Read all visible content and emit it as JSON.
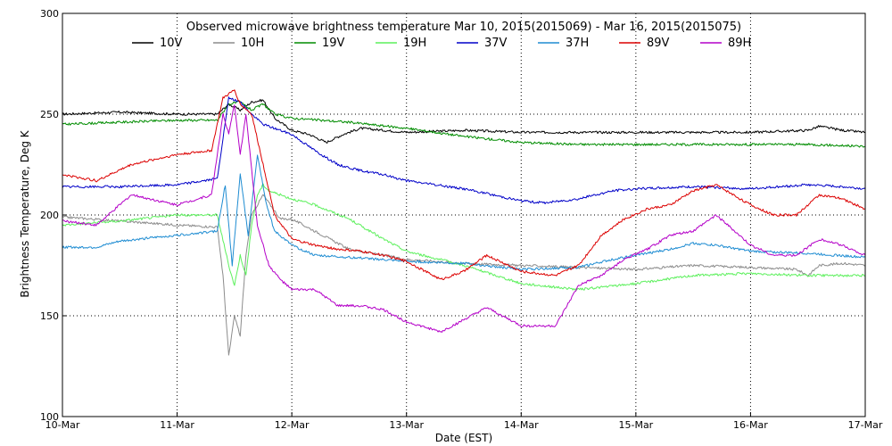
{
  "chart_data": {
    "type": "line",
    "title": "Observed microwave brightness temperature Mar 10, 2015(2015069) - Mar 16, 2015(2015075)",
    "xlabel": "Date (EST)",
    "ylabel": "Brightness Temperature, Deg K",
    "x_ticks": [
      "10-Mar",
      "11-Mar",
      "12-Mar",
      "13-Mar",
      "14-Mar",
      "15-Mar",
      "16-Mar",
      "17-Mar"
    ],
    "y_ticks": [
      "100",
      "150",
      "200",
      "250",
      "300"
    ],
    "xlim": [
      0,
      7
    ],
    "ylim": [
      100,
      300
    ],
    "grid": true,
    "legend_position": "top",
    "series": [
      {
        "name": "10V",
        "color": "#000000",
        "x": [
          0,
          0.5,
          1.0,
          1.35,
          1.45,
          1.55,
          1.65,
          1.75,
          1.85,
          2.0,
          2.15,
          2.3,
          2.45,
          2.6,
          2.8,
          3.0,
          3.5,
          4.0,
          4.5,
          5.0,
          5.5,
          6.0,
          6.5,
          6.6,
          6.8,
          7.0
        ],
        "y": [
          250,
          251,
          250,
          250,
          255,
          252,
          256,
          257,
          248,
          242,
          240,
          236,
          240,
          243,
          242,
          241,
          242,
          241,
          241,
          241,
          241,
          241,
          242,
          244,
          242,
          241
        ]
      },
      {
        "name": "10H",
        "color": "#8c8c8c",
        "x": [
          0,
          0.5,
          1.0,
          1.35,
          1.4,
          1.45,
          1.5,
          1.55,
          1.6,
          1.65,
          1.7,
          1.75,
          1.8,
          1.9,
          2.0,
          2.2,
          2.5,
          2.8,
          3.0,
          3.5,
          4.0,
          4.5,
          5.0,
          5.5,
          6.0,
          6.4,
          6.5,
          6.6,
          6.8,
          7.0
        ],
        "y": [
          199,
          197,
          195,
          194,
          170,
          130,
          150,
          140,
          180,
          200,
          205,
          210,
          206,
          198,
          198,
          192,
          183,
          180,
          178,
          176,
          175,
          174,
          173,
          175,
          174,
          173,
          170,
          175,
          176,
          175
        ]
      },
      {
        "name": "19V",
        "color": "#008c00",
        "x": [
          0,
          0.5,
          1.0,
          1.35,
          1.45,
          1.55,
          1.65,
          1.75,
          1.85,
          2.0,
          2.5,
          3.0,
          3.5,
          4.0,
          4.5,
          5.0,
          5.5,
          6.0,
          6.5,
          7.0
        ],
        "y": [
          245,
          246,
          247,
          247,
          255,
          256,
          252,
          255,
          250,
          248,
          246,
          243,
          239,
          236,
          235,
          235,
          235,
          235,
          235,
          234
        ]
      },
      {
        "name": "19H",
        "color": "#5cf05c",
        "x": [
          0,
          0.5,
          1.0,
          1.35,
          1.45,
          1.5,
          1.55,
          1.6,
          1.65,
          1.7,
          1.75,
          1.8,
          1.9,
          2.0,
          2.2,
          2.5,
          2.8,
          3.0,
          3.5,
          4.0,
          4.5,
          5.0,
          5.5,
          6.0,
          6.5,
          7.0
        ],
        "y": [
          195,
          197,
          200,
          200,
          175,
          165,
          180,
          170,
          195,
          210,
          215,
          212,
          210,
          208,
          205,
          198,
          188,
          182,
          175,
          166,
          163,
          166,
          170,
          171,
          170,
          170
        ]
      },
      {
        "name": "37V",
        "color": "#0000c8",
        "x": [
          0,
          0.5,
          1.0,
          1.35,
          1.45,
          1.55,
          1.65,
          1.75,
          1.85,
          2.0,
          2.2,
          2.4,
          2.6,
          2.8,
          3.0,
          3.5,
          4.0,
          4.2,
          4.5,
          4.8,
          5.0,
          5.5,
          6.0,
          6.5,
          6.8,
          7.0
        ],
        "y": [
          214,
          214,
          215,
          218,
          258,
          256,
          250,
          245,
          243,
          240,
          232,
          225,
          222,
          220,
          217,
          213,
          207,
          206,
          208,
          212,
          213,
          214,
          213,
          215,
          214,
          213
        ]
      },
      {
        "name": "37H",
        "color": "#1e8cd2",
        "x": [
          0,
          0.3,
          0.5,
          1.0,
          1.35,
          1.42,
          1.48,
          1.55,
          1.62,
          1.7,
          1.78,
          1.85,
          2.0,
          2.2,
          2.5,
          3.0,
          3.5,
          4.0,
          4.5,
          4.8,
          5.0,
          5.3,
          5.5,
          5.7,
          6.0,
          6.5,
          7.0
        ],
        "y": [
          184,
          184,
          187,
          190,
          192,
          215,
          175,
          220,
          190,
          230,
          205,
          192,
          185,
          180,
          179,
          177,
          176,
          173,
          174,
          178,
          180,
          183,
          186,
          185,
          182,
          181,
          179
        ]
      },
      {
        "name": "89V",
        "color": "#dc0000",
        "x": [
          0,
          0.3,
          0.6,
          1.0,
          1.3,
          1.4,
          1.5,
          1.55,
          1.65,
          1.75,
          1.85,
          2.0,
          2.2,
          2.4,
          2.6,
          2.8,
          3.0,
          3.3,
          3.5,
          3.7,
          4.0,
          4.3,
          4.5,
          4.7,
          4.9,
          5.1,
          5.3,
          5.5,
          5.7,
          6.0,
          6.2,
          6.4,
          6.6,
          6.8,
          7.0
        ],
        "y": [
          220,
          217,
          225,
          230,
          232,
          258,
          262,
          255,
          250,
          225,
          200,
          188,
          185,
          183,
          182,
          180,
          177,
          168,
          172,
          180,
          172,
          170,
          175,
          190,
          198,
          203,
          205,
          212,
          215,
          205,
          200,
          200,
          210,
          208,
          203
        ]
      },
      {
        "name": "89H",
        "color": "#b400c8",
        "x": [
          0,
          0.3,
          0.6,
          1.0,
          1.3,
          1.4,
          1.45,
          1.5,
          1.55,
          1.6,
          1.7,
          1.8,
          1.9,
          2.0,
          2.2,
          2.4,
          2.6,
          2.8,
          3.0,
          3.3,
          3.5,
          3.7,
          4.0,
          4.3,
          4.5,
          4.7,
          4.9,
          5.1,
          5.3,
          5.5,
          5.7,
          6.0,
          6.2,
          6.4,
          6.6,
          6.8,
          7.0
        ],
        "y": [
          197,
          195,
          210,
          205,
          210,
          250,
          240,
          255,
          230,
          250,
          195,
          175,
          168,
          163,
          163,
          155,
          155,
          153,
          147,
          142,
          148,
          154,
          145,
          145,
          165,
          170,
          178,
          183,
          190,
          192,
          200,
          185,
          180,
          180,
          188,
          185,
          180
        ]
      }
    ]
  }
}
